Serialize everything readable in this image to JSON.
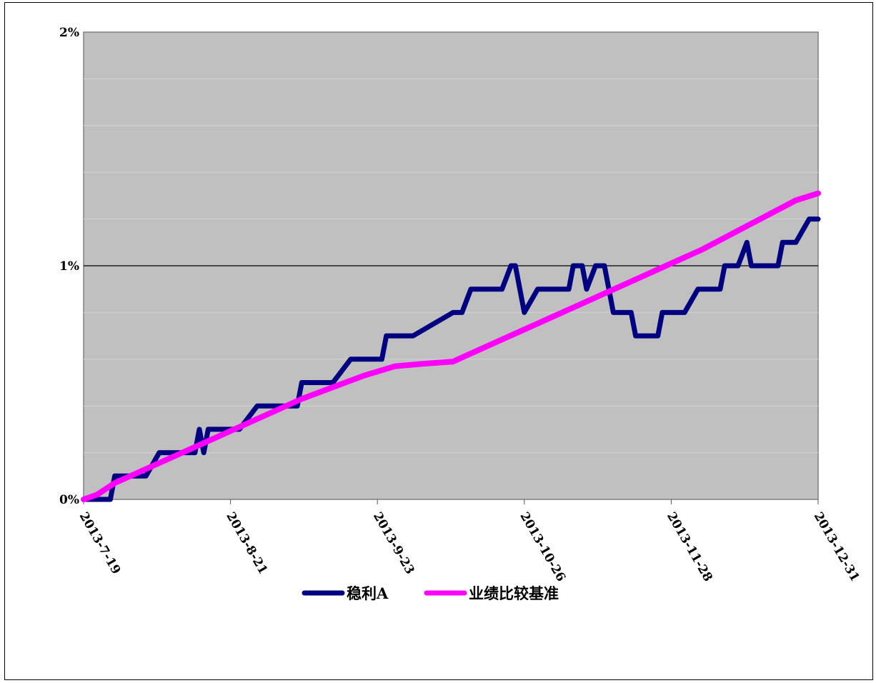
{
  "chart_data": {
    "type": "line",
    "x_tick_labels": [
      "2013-7-19",
      "2013-8-21",
      "2013-9-23",
      "2013-10-26",
      "2013-11-28",
      "2013-12-31"
    ],
    "y_tick_labels": [
      "0%",
      "1%",
      "2%"
    ],
    "xlim": [
      "2013-07-19",
      "2013-12-31"
    ],
    "ylim": [
      0,
      2
    ],
    "y_unit": "%",
    "grid": "horizontal minor lines every 0.2%, major line at 1%",
    "legend_position": "bottom-center",
    "series": [
      {
        "name": "稳利A",
        "color": "#000080",
        "points": [
          [
            "2013-07-19",
            0.0
          ],
          [
            "2013-07-25",
            0.0
          ],
          [
            "2013-07-26",
            0.1
          ],
          [
            "2013-08-02",
            0.1
          ],
          [
            "2013-08-05",
            0.2
          ],
          [
            "2013-08-13",
            0.2
          ],
          [
            "2013-08-14",
            0.3
          ],
          [
            "2013-08-15",
            0.2
          ],
          [
            "2013-08-16",
            0.3
          ],
          [
            "2013-08-23",
            0.3
          ],
          [
            "2013-08-27",
            0.4
          ],
          [
            "2013-09-05",
            0.4
          ],
          [
            "2013-09-06",
            0.5
          ],
          [
            "2013-09-13",
            0.5
          ],
          [
            "2013-09-17",
            0.6
          ],
          [
            "2013-09-24",
            0.6
          ],
          [
            "2013-09-25",
            0.7
          ],
          [
            "2013-10-01",
            0.7
          ],
          [
            "2013-10-10",
            0.8
          ],
          [
            "2013-10-12",
            0.8
          ],
          [
            "2013-10-14",
            0.9
          ],
          [
            "2013-10-21",
            0.9
          ],
          [
            "2013-10-23",
            1.0
          ],
          [
            "2013-10-24",
            1.0
          ],
          [
            "2013-10-26",
            0.8
          ],
          [
            "2013-10-29",
            0.9
          ],
          [
            "2013-11-05",
            0.9
          ],
          [
            "2013-11-06",
            1.0
          ],
          [
            "2013-11-08",
            1.0
          ],
          [
            "2013-11-09",
            0.9
          ],
          [
            "2013-11-11",
            1.0
          ],
          [
            "2013-11-13",
            1.0
          ],
          [
            "2013-11-15",
            0.8
          ],
          [
            "2013-11-19",
            0.8
          ],
          [
            "2013-11-20",
            0.7
          ],
          [
            "2013-11-25",
            0.7
          ],
          [
            "2013-11-26",
            0.8
          ],
          [
            "2013-12-01",
            0.8
          ],
          [
            "2013-12-04",
            0.9
          ],
          [
            "2013-12-09",
            0.9
          ],
          [
            "2013-12-10",
            1.0
          ],
          [
            "2013-12-13",
            1.0
          ],
          [
            "2013-12-15",
            1.1
          ],
          [
            "2013-12-16",
            1.0
          ],
          [
            "2013-12-22",
            1.0
          ],
          [
            "2013-12-23",
            1.1
          ],
          [
            "2013-12-26",
            1.1
          ],
          [
            "2013-12-29",
            1.2
          ],
          [
            "2013-12-31",
            1.2
          ]
        ]
      },
      {
        "name": "业绩比较基准",
        "color": "#ff00ff",
        "points": [
          [
            "2013-07-19",
            0.0
          ],
          [
            "2013-07-22",
            0.02
          ],
          [
            "2013-07-26",
            0.07
          ],
          [
            "2013-08-02",
            0.13
          ],
          [
            "2013-08-09",
            0.19
          ],
          [
            "2013-08-16",
            0.25
          ],
          [
            "2013-08-23",
            0.31
          ],
          [
            "2013-08-30",
            0.37
          ],
          [
            "2013-09-06",
            0.43
          ],
          [
            "2013-09-13",
            0.48
          ],
          [
            "2013-09-20",
            0.53
          ],
          [
            "2013-09-27",
            0.57
          ],
          [
            "2013-10-03",
            0.58
          ],
          [
            "2013-10-10",
            0.59
          ],
          [
            "2013-10-17",
            0.65
          ],
          [
            "2013-10-24",
            0.71
          ],
          [
            "2013-10-31",
            0.77
          ],
          [
            "2013-11-07",
            0.83
          ],
          [
            "2013-11-14",
            0.89
          ],
          [
            "2013-11-21",
            0.95
          ],
          [
            "2013-11-28",
            1.01
          ],
          [
            "2013-12-05",
            1.07
          ],
          [
            "2013-12-12",
            1.14
          ],
          [
            "2013-12-19",
            1.21
          ],
          [
            "2013-12-26",
            1.28
          ],
          [
            "2013-12-31",
            1.31
          ]
        ]
      }
    ]
  }
}
